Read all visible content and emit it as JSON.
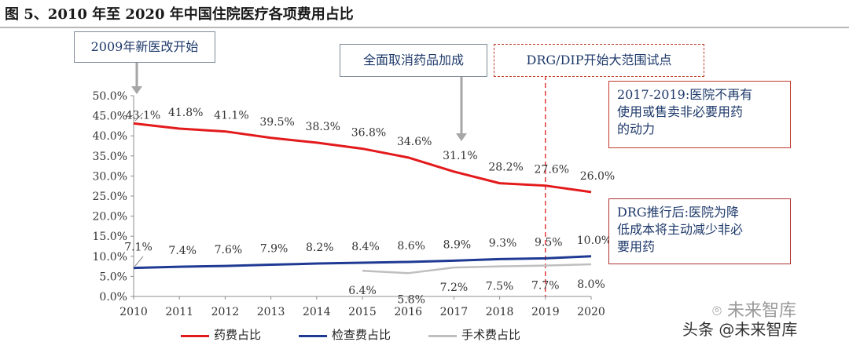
{
  "figure": {
    "title": "图 5、2010 年至 2020 年中国住院医疗各项费用占比"
  },
  "annotations": {
    "reform_2009": "2009年新医改开始",
    "drug_markup": "全面取消药品加成",
    "drg_pilot": "DRG/DIP开始大范围试点",
    "note_2017": [
      "2017-2019:医院不再有",
      "使用或售卖非必要用药",
      "的动力"
    ],
    "note_drg": [
      "DRG推行后:医院为降",
      "低成本将主动减少非必",
      "要用药"
    ]
  },
  "watermark": {
    "logo_text": "未来智库",
    "caption": "头条 @未来智库"
  },
  "colors": {
    "drug": "#e31a1c",
    "exam": "#1f3a93",
    "surgery": "#bfbfbf",
    "marker": "#e31a1c"
  },
  "chart_data": {
    "type": "line",
    "title": "",
    "xlabel": "",
    "ylabel": "",
    "x": [
      "2010",
      "2011",
      "2012",
      "2013",
      "2014",
      "2015",
      "2016",
      "2017",
      "2018",
      "2019",
      "2020"
    ],
    "ylim": [
      0,
      50
    ],
    "yticks": [
      "0.0%",
      "5.0%",
      "10.0%",
      "15.0%",
      "20.0%",
      "25.0%",
      "30.0%",
      "35.0%",
      "40.0%",
      "45.0%",
      "50.0%"
    ],
    "grid": false,
    "legend_position": "bottom",
    "series": [
      {
        "name": "药费占比",
        "values": [
          43.1,
          41.8,
          41.1,
          39.5,
          38.3,
          36.8,
          34.6,
          31.1,
          28.2,
          27.6,
          26.0
        ],
        "labels": [
          "43.1%",
          "41.8%",
          "41.1%",
          "39.5%",
          "38.3%",
          "36.8%",
          "34.6%",
          "31.1%",
          "28.2%",
          "27.6%",
          "26.0%"
        ]
      },
      {
        "name": "检查费占比",
        "values": [
          7.1,
          7.4,
          7.6,
          7.9,
          8.2,
          8.4,
          8.6,
          8.9,
          9.3,
          9.5,
          10.0
        ],
        "labels": [
          "7.1%",
          "7.4%",
          "7.6%",
          "7.9%",
          "8.2%",
          "8.4%",
          "8.6%",
          "8.9%",
          "9.3%",
          "9.5%",
          "10.0%"
        ]
      },
      {
        "name": "手术费占比",
        "values": [
          null,
          null,
          null,
          null,
          null,
          6.4,
          5.8,
          7.2,
          7.5,
          7.7,
          8.0
        ],
        "labels": [
          "",
          "",
          "",
          "",
          "",
          "6.4%",
          "5.8%",
          "7.2%",
          "7.5%",
          "7.7%",
          "8.0%"
        ]
      }
    ],
    "vertical_marker_year": "2019"
  }
}
